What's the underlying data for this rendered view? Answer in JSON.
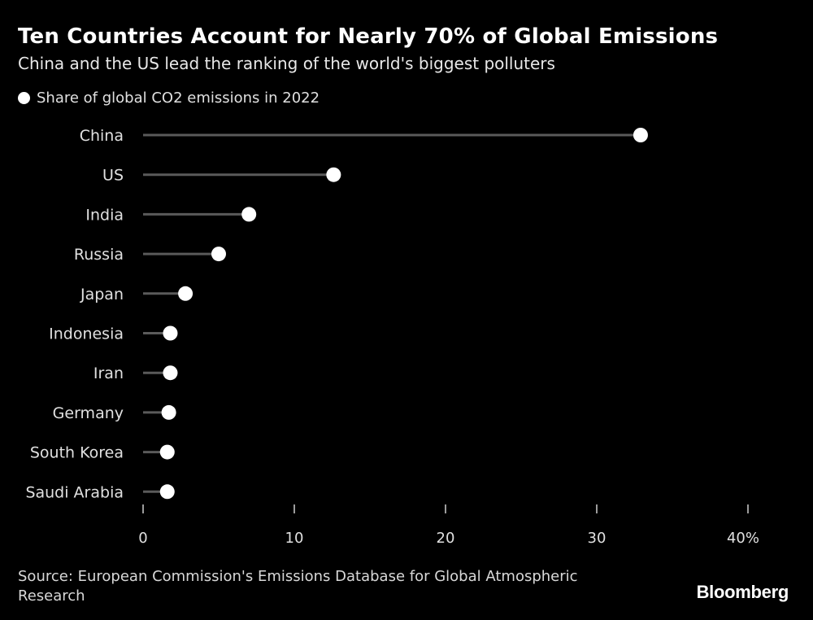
{
  "header": {
    "title": "Ten Countries Account for Nearly 70% of Global Emissions",
    "subtitle": "China and the US lead the ranking of the world's biggest polluters"
  },
  "legend": {
    "label": "Share of global CO2 emissions in 2022"
  },
  "footer": {
    "source": "Source: European Commission's Emissions Database for Global Atmospheric Research",
    "brand": "Bloomberg"
  },
  "colors": {
    "background": "#000000",
    "dot": "#ffffff",
    "stem": "#5a5a5a",
    "text": "#ffffff"
  },
  "chart_data": {
    "type": "lollipop",
    "title": "Ten Countries Account for Nearly 70% of Global Emissions",
    "subtitle": "China and the US lead the ranking of the world's biggest polluters",
    "categories": [
      "China",
      "US",
      "India",
      "Russia",
      "Japan",
      "Indonesia",
      "Iran",
      "Germany",
      "South Korea",
      "Saudi Arabia"
    ],
    "series": [
      {
        "name": "Share of global CO2 emissions in 2022",
        "values": [
          32.9,
          12.6,
          7.0,
          5.0,
          2.8,
          1.8,
          1.8,
          1.7,
          1.6,
          1.6
        ]
      }
    ],
    "xlim": [
      0,
      40
    ],
    "xticks": [
      0,
      10,
      20,
      30,
      40
    ],
    "xtick_labels": [
      "0",
      "10",
      "20",
      "30",
      "40%"
    ],
    "legend_position": "top-left",
    "grid": false
  }
}
